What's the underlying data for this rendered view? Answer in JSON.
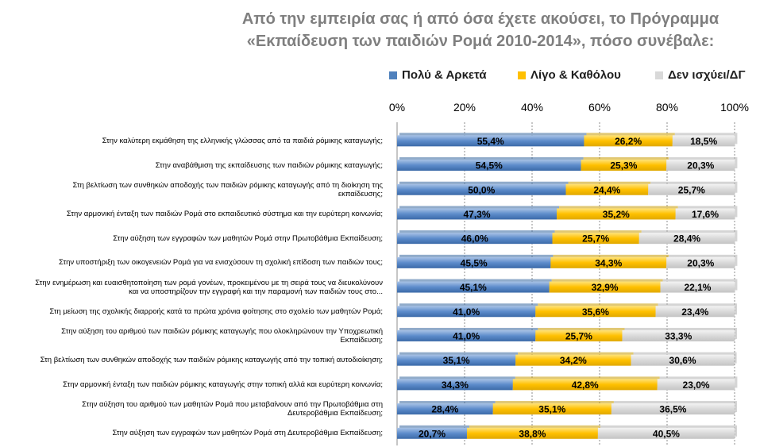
{
  "title": "Από την εμπειρία σας ή από όσα έχετε ακούσει, το Πρόγραμμα «Εκπαίδευση των παιδιών Ρομά 2010-2014», πόσο συνέβαλε:",
  "legend": {
    "items": [
      {
        "label": "Πολύ & Αρκετά",
        "color": "#4f81bd"
      },
      {
        "label": "Λίγο & Καθόλου",
        "color": "#ffc000"
      },
      {
        "label": "Δεν ισχύει/ΔΓ",
        "color": "#d9d9d9"
      }
    ]
  },
  "chart_data": {
    "type": "bar",
    "orientation": "horizontal",
    "stacked": true,
    "x_ticks": [
      "0%",
      "20%",
      "40%",
      "60%",
      "80%",
      "100%"
    ],
    "xlim": [
      0,
      100
    ],
    "legend_position": "top",
    "categories": [
      "Στην καλύτερη εκμάθηση της ελληνικής γλώσσας από τα παιδιά ρόμικης καταγωγής;",
      "Στην αναβάθμιση της εκπαίδευσης των παιδιών ρόμικης καταγωγής;",
      "Στη βελτίωση των συνθηκών αποδοχής των παιδιών ρόμικης καταγωγής από τη διοίκηση της εκπαίδευσης;",
      "Στην αρμονική ένταξη των παιδιών Ρομά στο εκπαιδευτικό σύστημα και την ευρύτερη κοινωνία;",
      "Στην αύξηση των εγγραφών των μαθητών Ρομά στην Πρωτοβάθμια Εκπαίδευση;",
      "Στην υποστήριξη των οικογενειών Ρομά για να ενισχύσουν τη σχολική επίδοση των παιδιών τους;",
      "Στην ενημέρωση και ευαισθητοποίηση των ρομά γονέων, προκειμένου με τη σειρά τους να διευκολύνουν και να υποστηρίζουν την εγγραφή και την παραμονή των παιδιών τους στο...",
      "Στη μείωση της σχολικής διαρροής κατά τα πρώτα χρόνια φοίτησης στο σχολείο των μαθητών Ρομά;",
      "Στην αύξηση του αριθμού των παιδιών ρόμικης καταγωγής που ολοκληρώνουν την Υποχρεωτική Εκπαίδευση;",
      "Στη βελτίωση των συνθηκών αποδοχής των παιδιών ρόμικης καταγωγής από την τοπική αυτοδιοίκηση;",
      "Στην αρμονική ένταξη των παιδιών ρόμικης καταγωγής στην τοπική αλλά και ευρύτερη κοινωνία;",
      "Στην αύξηση του αριθμού των μαθητών Ρομά που μεταβαίνουν από την Πρωτοβάθμια στη Δευτεροβάθμια Εκπαίδευση;",
      "Στην αύξηση των εγγραφών των μαθητών Ρομά στη Δευτεροβάθμια Εκπαίδευση;"
    ],
    "series": [
      {
        "name": "Πολύ & Αρκετά",
        "color": "#4f81bd",
        "values": [
          55.4,
          54.5,
          50.0,
          47.3,
          46.0,
          45.5,
          45.1,
          41.0,
          41.0,
          35.1,
          34.3,
          28.4,
          20.7
        ]
      },
      {
        "name": "Λίγο & Καθόλου",
        "color": "#ffc000",
        "values": [
          26.2,
          25.3,
          24.4,
          35.2,
          25.7,
          34.3,
          32.9,
          35.6,
          25.7,
          34.2,
          42.8,
          35.1,
          38.8
        ]
      },
      {
        "name": "Δεν ισχύει/ΔΓ",
        "color": "#d9d9d9",
        "values": [
          18.5,
          20.3,
          25.7,
          17.6,
          28.4,
          20.3,
          22.1,
          23.4,
          33.3,
          30.6,
          23.0,
          36.5,
          40.5
        ]
      }
    ],
    "value_labels": [
      [
        "55,4%",
        "26,2%",
        "18,5%"
      ],
      [
        "54,5%",
        "25,3%",
        "20,3%"
      ],
      [
        "50,0%",
        "24,4%",
        "25,7%"
      ],
      [
        "47,3%",
        "35,2%",
        "17,6%"
      ],
      [
        "46,0%",
        "25,7%",
        "28,4%"
      ],
      [
        "45,5%",
        "34,3%",
        "20,3%"
      ],
      [
        "45,1%",
        "32,9%",
        "22,1%"
      ],
      [
        "41,0%",
        "35,6%",
        "23,4%"
      ],
      [
        "41,0%",
        "25,7%",
        "33,3%"
      ],
      [
        "35,1%",
        "34,2%",
        "30,6%"
      ],
      [
        "34,3%",
        "42,8%",
        "23,0%"
      ],
      [
        "28,4%",
        "35,1%",
        "36,5%"
      ],
      [
        "20,7%",
        "38,8%",
        "40,5%"
      ]
    ]
  }
}
